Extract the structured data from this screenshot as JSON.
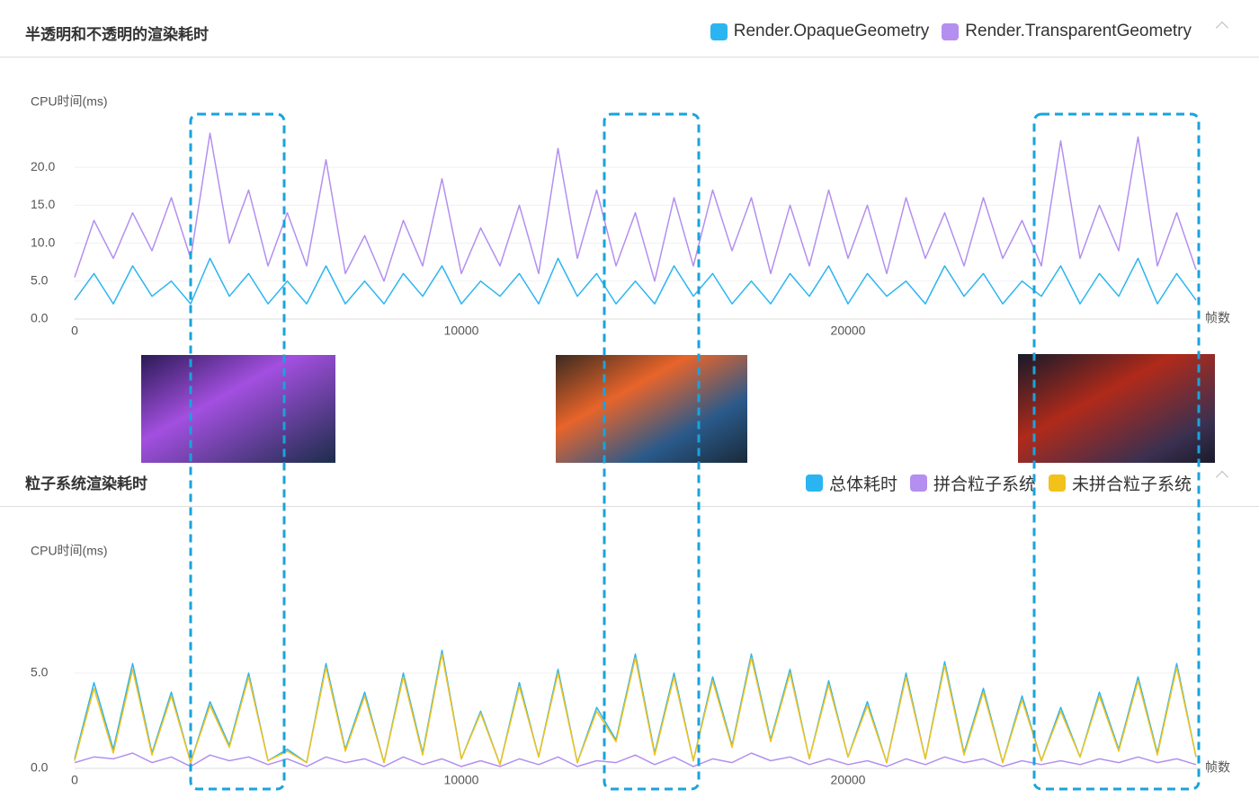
{
  "chart_data": [
    {
      "type": "line",
      "title": "半透明和不透明的渲染耗时",
      "y_label": "CPU时间(ms)",
      "x_label": "帧数",
      "x": [
        0,
        500,
        1000,
        1500,
        2000,
        2500,
        3000,
        3500,
        4000,
        4500,
        5000,
        5500,
        6000,
        6500,
        7000,
        7500,
        8000,
        8500,
        9000,
        9500,
        10000,
        10500,
        11000,
        11500,
        12000,
        12500,
        13000,
        13500,
        14000,
        14500,
        15000,
        15500,
        16000,
        16500,
        17000,
        17500,
        18000,
        18500,
        19000,
        19500,
        20000,
        20500,
        21000,
        21500,
        22000,
        22500,
        23000,
        23500,
        24000,
        24500,
        25000,
        25500,
        26000,
        26500,
        27000,
        27500,
        28000,
        28500,
        29000
      ],
      "series": [
        {
          "name": "Render.OpaqueGeometry",
          "color": "#2bb5f0",
          "values": [
            2.5,
            6,
            2,
            7,
            3,
            5,
            2,
            8,
            3,
            6,
            2,
            5,
            2,
            7,
            2,
            5,
            2,
            6,
            3,
            7,
            2,
            5,
            3,
            6,
            2,
            8,
            3,
            6,
            2,
            5,
            2,
            7,
            3,
            6,
            2,
            5,
            2,
            6,
            3,
            7,
            2,
            6,
            3,
            5,
            2,
            7,
            3,
            6,
            2,
            5,
            3,
            7,
            2,
            6,
            3,
            8,
            2,
            6,
            2.5
          ]
        },
        {
          "name": "Render.TransparentGeometry",
          "color": "#b48ff0",
          "values": [
            5.5,
            13,
            8,
            14,
            9,
            16,
            8,
            24.5,
            10,
            17,
            7,
            14,
            7,
            21,
            6,
            11,
            5,
            13,
            7,
            18.5,
            6,
            12,
            7,
            15,
            6,
            22.5,
            8,
            17,
            7,
            14,
            5,
            16,
            7,
            17,
            9,
            16,
            6,
            15,
            7,
            17,
            8,
            15,
            6,
            16,
            8,
            14,
            7,
            16,
            8,
            13,
            7,
            23.5,
            8,
            15,
            9,
            24,
            7,
            14,
            6.5
          ]
        }
      ],
      "xlim": [
        0,
        29000
      ],
      "xticks": [
        0,
        10000,
        20000
      ],
      "ylim": [
        0,
        25
      ],
      "yticks": [
        {
          "value": 0,
          "label": "0.0"
        },
        {
          "value": 5,
          "label": "5.0"
        },
        {
          "value": 10,
          "label": "10.0"
        },
        {
          "value": 15,
          "label": "15.0"
        },
        {
          "value": 20,
          "label": "20.0"
        }
      ],
      "grid": true
    },
    {
      "type": "line",
      "title": "粒子系统渲染耗时",
      "y_label": "CPU时间(ms)",
      "x_label": "帧数",
      "x": [
        0,
        500,
        1000,
        1500,
        2000,
        2500,
        3000,
        3500,
        4000,
        4500,
        5000,
        5500,
        6000,
        6500,
        7000,
        7500,
        8000,
        8500,
        9000,
        9500,
        10000,
        10500,
        11000,
        11500,
        12000,
        12500,
        13000,
        13500,
        14000,
        14500,
        15000,
        15500,
        16000,
        16500,
        17000,
        17500,
        18000,
        18500,
        19000,
        19500,
        20000,
        20500,
        21000,
        21500,
        22000,
        22500,
        23000,
        23500,
        24000,
        24500,
        25000,
        25500,
        26000,
        26500,
        27000,
        27500,
        28000,
        28500,
        29000
      ],
      "series": [
        {
          "name": "总体耗时",
          "color": "#2bb5f0",
          "values": [
            0.5,
            4.5,
            1,
            5.5,
            0.8,
            4,
            0.3,
            3.5,
            1.2,
            5,
            0.4,
            1,
            0.3,
            5.5,
            1,
            4,
            0.3,
            5,
            0.8,
            6.2,
            0.5,
            3,
            0.2,
            4.5,
            0.6,
            5.2,
            0.3,
            3.2,
            1.5,
            6,
            0.8,
            5,
            0.4,
            4.8,
            1.2,
            6,
            1.5,
            5.2,
            0.5,
            4.6,
            0.6,
            3.5,
            0.3,
            5,
            0.5,
            5.6,
            0.8,
            4.2,
            0.3,
            3.8,
            0.4,
            3.2,
            0.6,
            4,
            1,
            4.8,
            0.8,
            5.5,
            0.6
          ]
        },
        {
          "name": "拼合粒子系统",
          "color": "#b48ff0",
          "values": [
            0.3,
            0.6,
            0.5,
            0.8,
            0.3,
            0.6,
            0.1,
            0.7,
            0.4,
            0.6,
            0.2,
            0.5,
            0.1,
            0.6,
            0.3,
            0.5,
            0.1,
            0.6,
            0.2,
            0.5,
            0.1,
            0.4,
            0.1,
            0.5,
            0.2,
            0.6,
            0.1,
            0.4,
            0.3,
            0.7,
            0.2,
            0.6,
            0.1,
            0.5,
            0.3,
            0.8,
            0.4,
            0.6,
            0.2,
            0.5,
            0.2,
            0.4,
            0.1,
            0.5,
            0.2,
            0.6,
            0.3,
            0.5,
            0.1,
            0.4,
            0.2,
            0.4,
            0.2,
            0.5,
            0.3,
            0.6,
            0.3,
            0.5,
            0.2
          ]
        },
        {
          "name": "未拼合粒子系统",
          "color": "#f2c21b",
          "values": [
            0.4,
            4.2,
            0.8,
            5.2,
            0.7,
            3.8,
            0.3,
            3.3,
            1.1,
            4.8,
            0.4,
            0.9,
            0.3,
            5.3,
            0.9,
            3.8,
            0.3,
            4.8,
            0.7,
            6,
            0.5,
            2.9,
            0.2,
            4.3,
            0.6,
            5,
            0.3,
            3,
            1.4,
            5.8,
            0.7,
            4.8,
            0.4,
            4.6,
            1.1,
            5.8,
            1.4,
            5,
            0.5,
            4.4,
            0.6,
            3.3,
            0.3,
            4.8,
            0.5,
            5.4,
            0.7,
            4,
            0.3,
            3.6,
            0.4,
            3,
            0.6,
            3.8,
            0.9,
            4.6,
            0.7,
            5.3,
            0.6
          ]
        }
      ],
      "xlim": [
        0,
        29000
      ],
      "xticks": [
        0,
        10000,
        20000
      ],
      "ylim": [
        0,
        10
      ],
      "yticks": [
        {
          "value": 0,
          "label": "0.0"
        },
        {
          "value": 5,
          "label": "5.0"
        }
      ],
      "grid": true
    }
  ]
}
